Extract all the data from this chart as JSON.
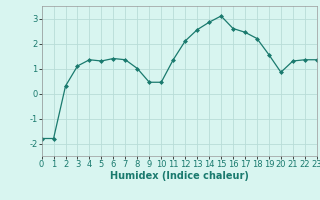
{
  "x": [
    0,
    1,
    2,
    3,
    4,
    5,
    6,
    7,
    8,
    9,
    10,
    11,
    12,
    13,
    14,
    15,
    16,
    17,
    18,
    19,
    20,
    21,
    22,
    23
  ],
  "y": [
    -1.8,
    -1.8,
    0.3,
    1.1,
    1.35,
    1.3,
    1.4,
    1.35,
    1.0,
    0.45,
    0.45,
    1.35,
    2.1,
    2.55,
    2.85,
    3.1,
    2.6,
    2.45,
    2.2,
    1.55,
    0.85,
    1.3,
    1.35,
    1.35
  ],
  "xlabel": "Humidex (Indice chaleur)",
  "xlim": [
    0,
    23
  ],
  "ylim": [
    -2.5,
    3.5
  ],
  "yticks": [
    -2,
    -1,
    0,
    1,
    2,
    3
  ],
  "xticks": [
    0,
    1,
    2,
    3,
    4,
    5,
    6,
    7,
    8,
    9,
    10,
    11,
    12,
    13,
    14,
    15,
    16,
    17,
    18,
    19,
    20,
    21,
    22,
    23
  ],
  "line_color": "#1a7a6e",
  "marker": "D",
  "marker_size": 2.0,
  "bg_color": "#d8f5f0",
  "grid_color": "#b8ddd8",
  "axis_label_fontsize": 7.0,
  "tick_fontsize": 6.0,
  "lw": 0.9
}
